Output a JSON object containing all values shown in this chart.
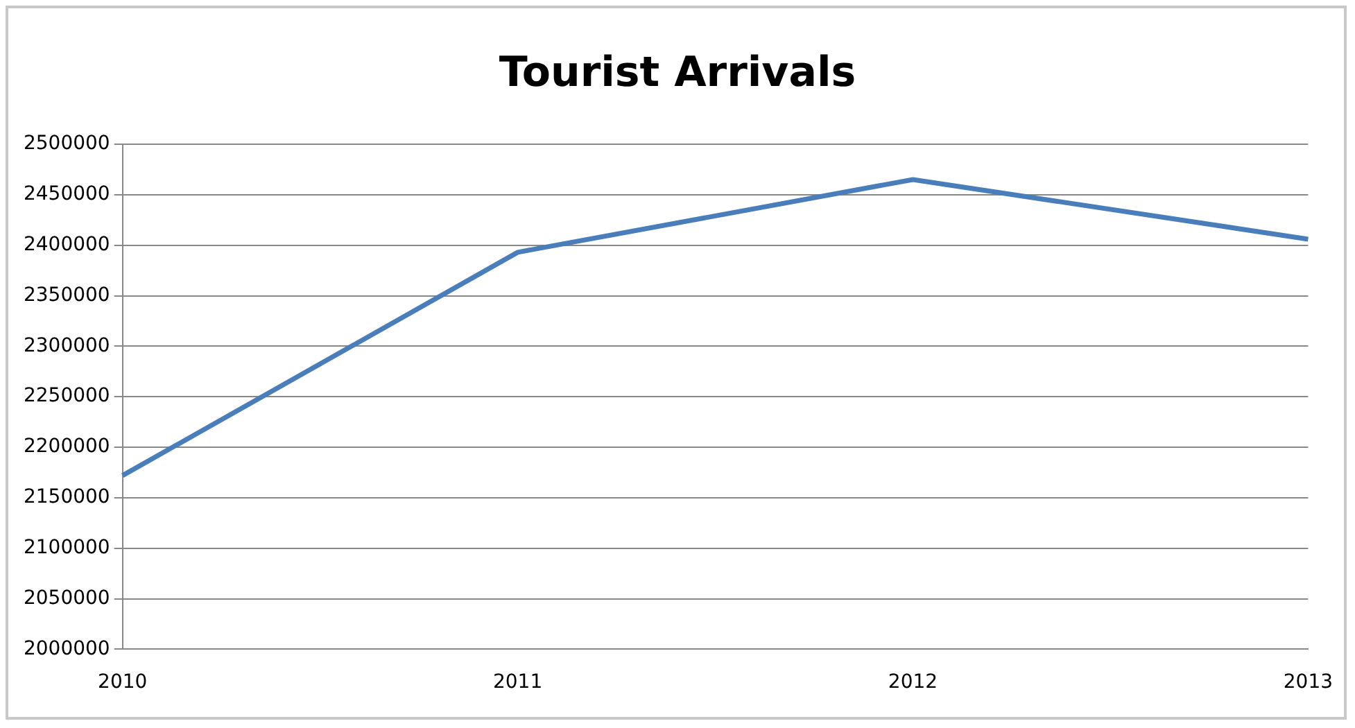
{
  "chart_data": {
    "type": "line",
    "title": "Tourist Arrivals",
    "categories": [
      "2010",
      "2011",
      "2012",
      "2013"
    ],
    "series": [
      {
        "color": "#4a7ebb",
        "values": [
          2172000,
          2393000,
          2465000,
          2406000
        ]
      }
    ],
    "ylim": [
      2000000,
      2500000
    ],
    "yticks": [
      2000000,
      2050000,
      2100000,
      2150000,
      2200000,
      2250000,
      2300000,
      2350000,
      2400000,
      2450000,
      2500000
    ],
    "grid": "y",
    "legend": false,
    "marker": "none",
    "line_style": "solid"
  }
}
